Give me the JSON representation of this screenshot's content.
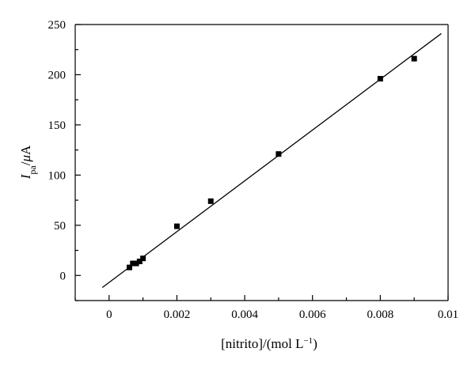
{
  "chart_data": {
    "type": "scatter",
    "title": "",
    "xlabel": "[nitrito]/(mol L−1)",
    "ylabel": "Ipa/μA",
    "xlim": [
      -0.001,
      0.01
    ],
    "ylim": [
      -25,
      250
    ],
    "x_ticks": [
      0,
      0.002,
      0.004,
      0.006,
      0.008,
      0.01
    ],
    "x_tick_labels": [
      "0",
      "0.002",
      "0.004",
      "0.006",
      "0.008",
      "0.01"
    ],
    "y_ticks": [
      0,
      50,
      100,
      150,
      200,
      250
    ],
    "y_tick_labels": [
      "0",
      "50",
      "100",
      "150",
      "200",
      "250"
    ],
    "grid": false,
    "series": [
      {
        "marker": "square",
        "x": [
          0.0006,
          0.0007,
          0.0008,
          0.0009,
          0.001,
          0.002,
          0.003,
          0.005,
          0.008,
          0.009
        ],
        "y": [
          8,
          12,
          12,
          14,
          17,
          49,
          74,
          121,
          196,
          216
        ]
      }
    ],
    "fit_line": {
      "x": [
        -0.0002,
        0.0098
      ],
      "y": [
        -12,
        241
      ]
    }
  }
}
